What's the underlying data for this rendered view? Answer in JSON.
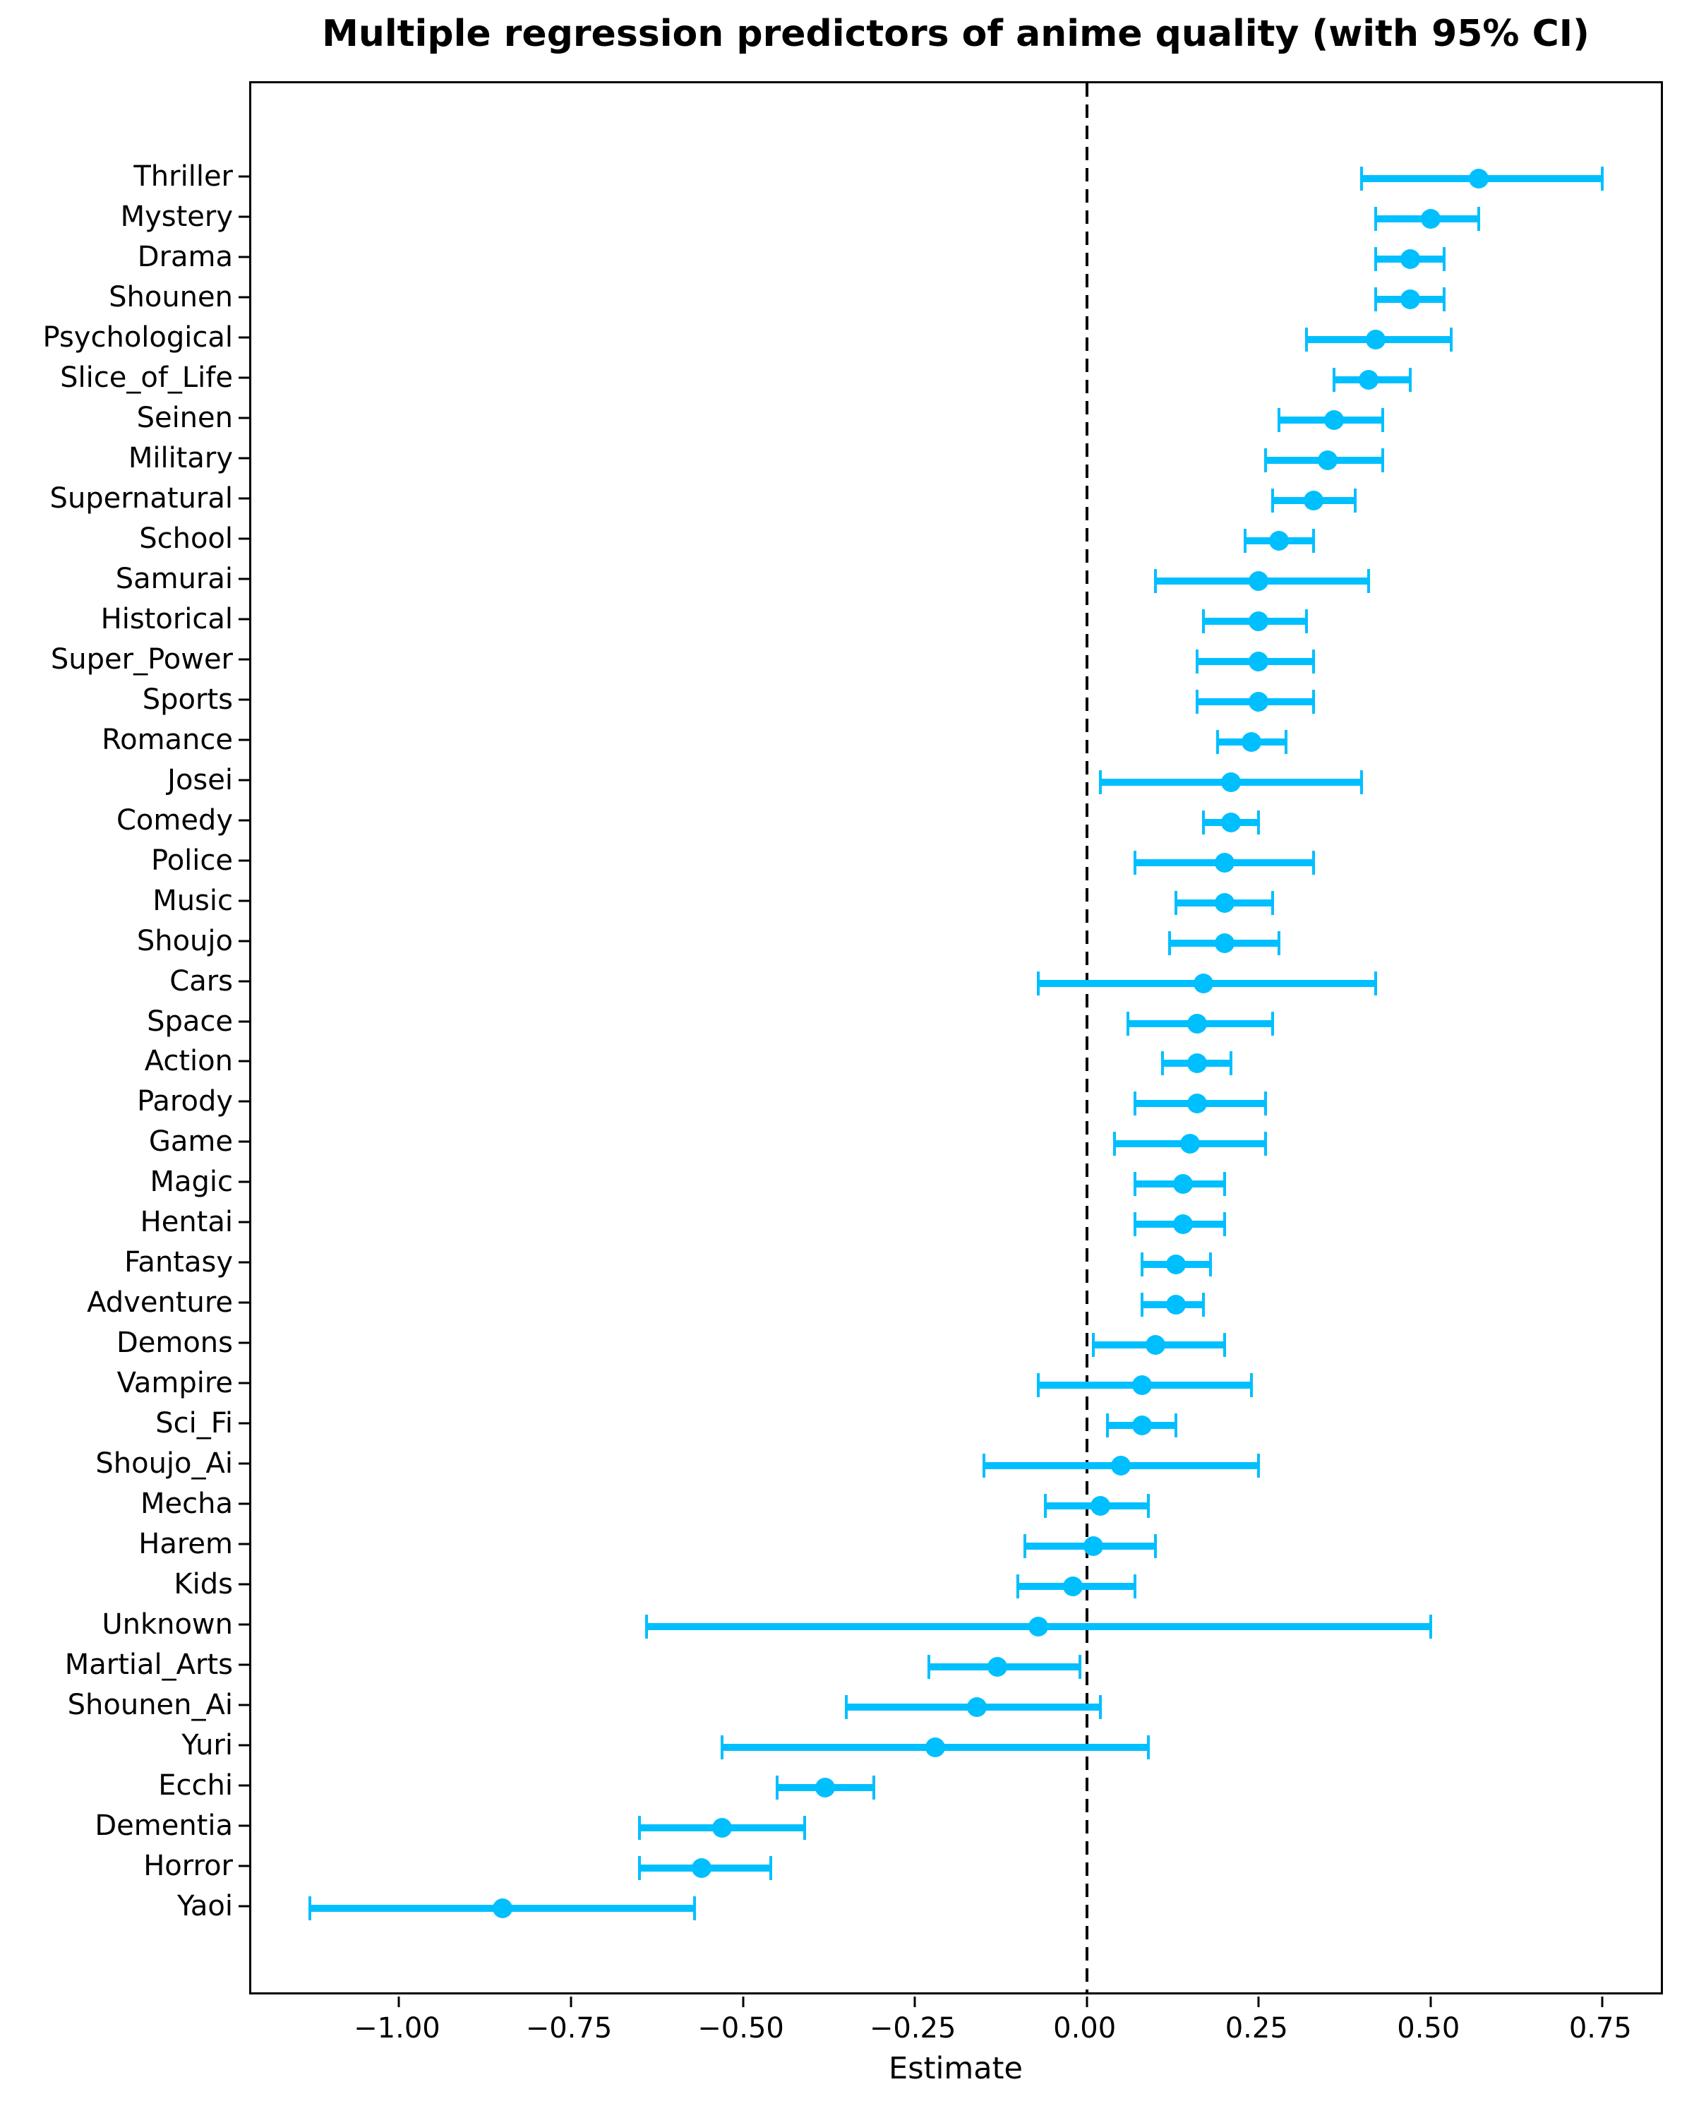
{
  "page": {
    "background_color": "#ffffff",
    "text_color": "#000000"
  },
  "chart_data": {
    "type": "scatter",
    "subtype": "horizontal-errorbar-coefficient-plot",
    "title": "Multiple regression predictors of anime quality (with 95% CI)",
    "xlabel": "Estimate",
    "ylabel": "",
    "grid": false,
    "legend": "none",
    "xlim": [
      -1.215,
      0.841
    ],
    "x_tick_values": [
      -1.0,
      -0.75,
      -0.5,
      -0.25,
      0.0,
      0.25,
      0.5,
      0.75
    ],
    "x_tick_labels": [
      "−1.00",
      "−0.75",
      "−0.50",
      "−0.25",
      "0.00",
      "0.25",
      "0.50",
      "0.75"
    ],
    "reference_line_x": 0,
    "reference_line_style": "dashed",
    "reference_line_color": "#000000",
    "point_color": "#00BFFF",
    "error_bar_color": "#00BFFF",
    "categories": [
      "Thriller",
      "Mystery",
      "Drama",
      "Shounen",
      "Psychological",
      "Slice_of_Life",
      "Seinen",
      "Military",
      "Supernatural",
      "School",
      "Samurai",
      "Historical",
      "Super_Power",
      "Sports",
      "Romance",
      "Josei",
      "Comedy",
      "Police",
      "Music",
      "Shoujo",
      "Cars",
      "Space",
      "Action",
      "Parody",
      "Game",
      "Magic",
      "Hentai",
      "Fantasy",
      "Adventure",
      "Demons",
      "Vampire",
      "Sci_Fi",
      "Shoujo_Ai",
      "Mecha",
      "Harem",
      "Kids",
      "Unknown",
      "Martial_Arts",
      "Shounen_Ai",
      "Yuri",
      "Ecchi",
      "Dementia",
      "Horror",
      "Yaoi"
    ],
    "rows": [
      {
        "label": "Thriller",
        "estimate": 0.57,
        "ci_low": 0.4,
        "ci_high": 0.75
      },
      {
        "label": "Mystery",
        "estimate": 0.5,
        "ci_low": 0.42,
        "ci_high": 0.57
      },
      {
        "label": "Drama",
        "estimate": 0.47,
        "ci_low": 0.42,
        "ci_high": 0.52
      },
      {
        "label": "Shounen",
        "estimate": 0.47,
        "ci_low": 0.42,
        "ci_high": 0.52
      },
      {
        "label": "Psychological",
        "estimate": 0.42,
        "ci_low": 0.32,
        "ci_high": 0.53
      },
      {
        "label": "Slice_of_Life",
        "estimate": 0.41,
        "ci_low": 0.36,
        "ci_high": 0.47
      },
      {
        "label": "Seinen",
        "estimate": 0.36,
        "ci_low": 0.28,
        "ci_high": 0.43
      },
      {
        "label": "Military",
        "estimate": 0.35,
        "ci_low": 0.26,
        "ci_high": 0.43
      },
      {
        "label": "Supernatural",
        "estimate": 0.33,
        "ci_low": 0.27,
        "ci_high": 0.39
      },
      {
        "label": "School",
        "estimate": 0.28,
        "ci_low": 0.23,
        "ci_high": 0.33
      },
      {
        "label": "Samurai",
        "estimate": 0.25,
        "ci_low": 0.1,
        "ci_high": 0.41
      },
      {
        "label": "Historical",
        "estimate": 0.25,
        "ci_low": 0.17,
        "ci_high": 0.32
      },
      {
        "label": "Super_Power",
        "estimate": 0.25,
        "ci_low": 0.16,
        "ci_high": 0.33
      },
      {
        "label": "Sports",
        "estimate": 0.25,
        "ci_low": 0.16,
        "ci_high": 0.33
      },
      {
        "label": "Romance",
        "estimate": 0.24,
        "ci_low": 0.19,
        "ci_high": 0.29
      },
      {
        "label": "Josei",
        "estimate": 0.21,
        "ci_low": 0.02,
        "ci_high": 0.4
      },
      {
        "label": "Comedy",
        "estimate": 0.21,
        "ci_low": 0.17,
        "ci_high": 0.25
      },
      {
        "label": "Police",
        "estimate": 0.2,
        "ci_low": 0.07,
        "ci_high": 0.33
      },
      {
        "label": "Music",
        "estimate": 0.2,
        "ci_low": 0.13,
        "ci_high": 0.27
      },
      {
        "label": "Shoujo",
        "estimate": 0.2,
        "ci_low": 0.12,
        "ci_high": 0.28
      },
      {
        "label": "Cars",
        "estimate": 0.17,
        "ci_low": -0.07,
        "ci_high": 0.42
      },
      {
        "label": "Space",
        "estimate": 0.16,
        "ci_low": 0.06,
        "ci_high": 0.27
      },
      {
        "label": "Action",
        "estimate": 0.16,
        "ci_low": 0.11,
        "ci_high": 0.21
      },
      {
        "label": "Parody",
        "estimate": 0.16,
        "ci_low": 0.07,
        "ci_high": 0.26
      },
      {
        "label": "Game",
        "estimate": 0.15,
        "ci_low": 0.04,
        "ci_high": 0.26
      },
      {
        "label": "Magic",
        "estimate": 0.14,
        "ci_low": 0.07,
        "ci_high": 0.2
      },
      {
        "label": "Hentai",
        "estimate": 0.14,
        "ci_low": 0.07,
        "ci_high": 0.2
      },
      {
        "label": "Fantasy",
        "estimate": 0.13,
        "ci_low": 0.08,
        "ci_high": 0.18
      },
      {
        "label": "Adventure",
        "estimate": 0.13,
        "ci_low": 0.08,
        "ci_high": 0.17
      },
      {
        "label": "Demons",
        "estimate": 0.1,
        "ci_low": 0.01,
        "ci_high": 0.2
      },
      {
        "label": "Vampire",
        "estimate": 0.08,
        "ci_low": -0.07,
        "ci_high": 0.24
      },
      {
        "label": "Sci_Fi",
        "estimate": 0.08,
        "ci_low": 0.03,
        "ci_high": 0.13
      },
      {
        "label": "Shoujo_Ai",
        "estimate": 0.05,
        "ci_low": -0.15,
        "ci_high": 0.25
      },
      {
        "label": "Mecha",
        "estimate": 0.02,
        "ci_low": -0.06,
        "ci_high": 0.09
      },
      {
        "label": "Harem",
        "estimate": 0.01,
        "ci_low": -0.09,
        "ci_high": 0.1
      },
      {
        "label": "Kids",
        "estimate": -0.02,
        "ci_low": -0.1,
        "ci_high": 0.07
      },
      {
        "label": "Unknown",
        "estimate": -0.07,
        "ci_low": -0.64,
        "ci_high": 0.5
      },
      {
        "label": "Martial_Arts",
        "estimate": -0.13,
        "ci_low": -0.23,
        "ci_high": -0.01
      },
      {
        "label": "Shounen_Ai",
        "estimate": -0.16,
        "ci_low": -0.35,
        "ci_high": 0.02
      },
      {
        "label": "Yuri",
        "estimate": -0.22,
        "ci_low": -0.53,
        "ci_high": 0.09
      },
      {
        "label": "Ecchi",
        "estimate": -0.38,
        "ci_low": -0.45,
        "ci_high": -0.31
      },
      {
        "label": "Dementia",
        "estimate": -0.53,
        "ci_low": -0.65,
        "ci_high": -0.41
      },
      {
        "label": "Horror",
        "estimate": -0.56,
        "ci_low": -0.65,
        "ci_high": -0.46
      },
      {
        "label": "Yaoi",
        "estimate": -0.85,
        "ci_low": -1.13,
        "ci_high": -0.57
      }
    ]
  }
}
